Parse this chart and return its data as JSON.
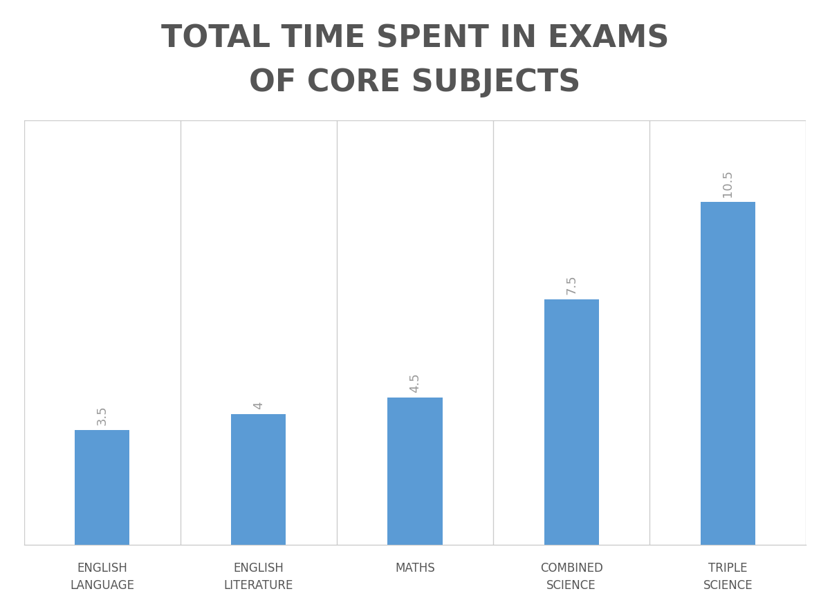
{
  "title": "TOTAL TIME SPENT IN EXAMS\nOF CORE SUBJECTS",
  "categories": [
    "ENGLISH\nLANGUAGE",
    "ENGLISH\nLITERATURE",
    "MATHS",
    "COMBINED\nSCIENCE",
    "TRIPLE\nSCIENCE"
  ],
  "values": [
    3.5,
    4.0,
    4.5,
    7.5,
    10.5
  ],
  "bar_color": "#5B9BD5",
  "background_color": "#FFFFFF",
  "plot_bg_color": "#FFFFFF",
  "title_fontsize": 32,
  "title_color": "#555555",
  "label_fontsize": 12,
  "label_color": "#555555",
  "value_label_fontsize": 13,
  "value_label_color": "#999999",
  "ylim": [
    0,
    13
  ],
  "bar_width": 0.35,
  "grid_color": "#CCCCCC",
  "spine_color": "#CCCCCC"
}
